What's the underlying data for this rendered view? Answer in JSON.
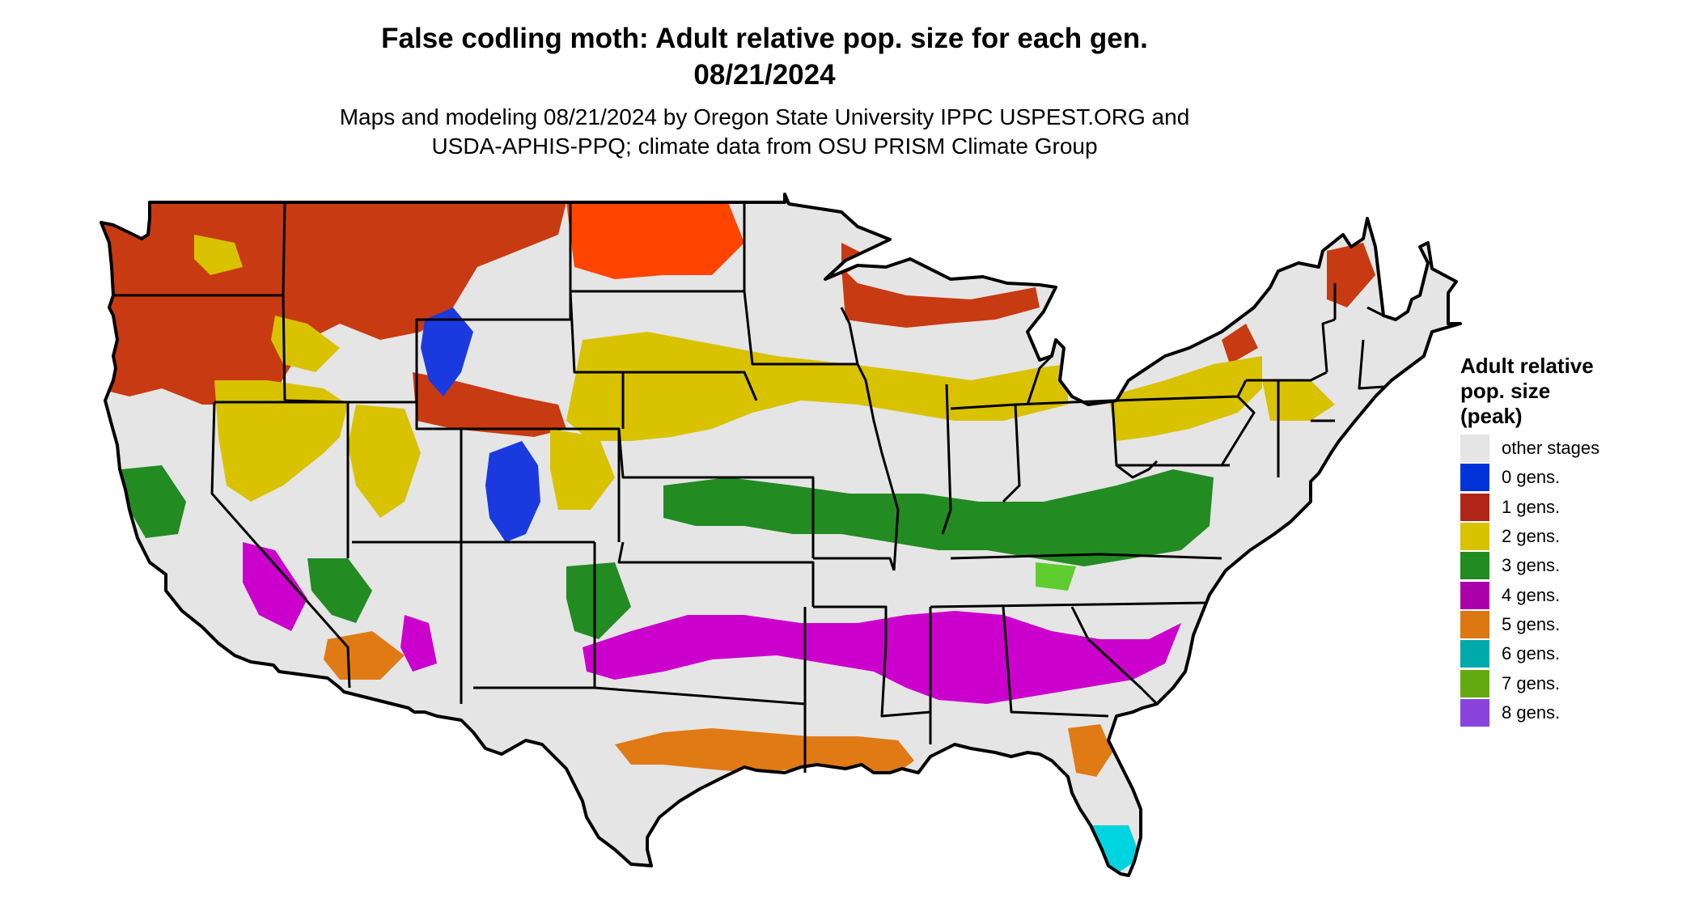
{
  "title": {
    "line1": "False codling moth: Adult relative pop. size for each gen.",
    "line2": "08/21/2024"
  },
  "subtitle": {
    "line1": "Maps and modeling 08/21/2024 by Oregon State University IPPC USPEST.ORG and",
    "line2": "USDA-APHIS-PPQ; climate data from OSU PRISM Climate Group"
  },
  "legend": {
    "title_lines": [
      "Adult relative",
      "pop. size",
      "(peak)"
    ],
    "items": [
      {
        "label": "other stages",
        "color": "#e5e5e5"
      },
      {
        "label": "0 gens.",
        "color": "#0033d9"
      },
      {
        "label": "1 gens.",
        "color": "#b22417"
      },
      {
        "label": "2 gens.",
        "color": "#d9c200"
      },
      {
        "label": "3 gens.",
        "color": "#228b22"
      },
      {
        "label": "4 gens.",
        "color": "#aa00aa"
      },
      {
        "label": "5 gens.",
        "color": "#dd7711"
      },
      {
        "label": "6 gens.",
        "color": "#00aaaa"
      },
      {
        "label": "7 gens.",
        "color": "#66aa11"
      },
      {
        "label": "8 gens.",
        "color": "#8844dd"
      }
    ]
  },
  "map": {
    "region": "contiguous United States",
    "background_color": "#e5e5e5",
    "border_color": "#000000"
  }
}
